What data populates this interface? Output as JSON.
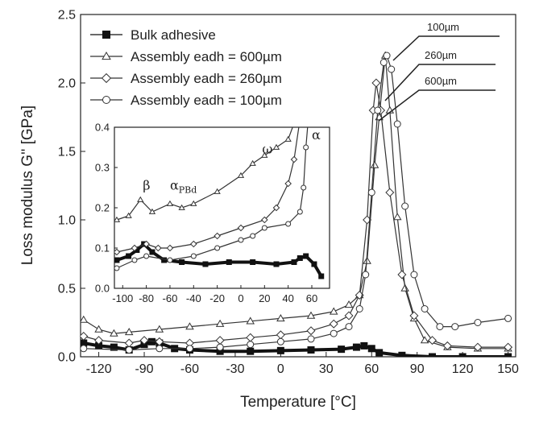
{
  "chart_data": [
    {
      "type": "line",
      "xlabel": "Temperature [°C]",
      "ylabel": "Loss modulus G'' [GPa]",
      "xlim": [
        -132,
        155
      ],
      "ylim": [
        0,
        2.5
      ],
      "xticks": [
        -120,
        -90,
        -60,
        -30,
        0,
        30,
        60,
        90,
        120,
        150
      ],
      "yticks": [
        {
          "value": 0,
          "label": "0.0"
        },
        {
          "value": 0.5,
          "label": "0.5"
        },
        {
          "value": 1,
          "label": "1.0"
        },
        {
          "value": 1.5,
          "label": "1.5"
        },
        {
          "value": 2,
          "label": "2.0"
        },
        {
          "value": 2.5,
          "label": "2.5"
        }
      ],
      "legend": "upper left",
      "series": [
        {
          "name": "Bulk adhesive",
          "color": "#111111",
          "marker": "square",
          "x": [
            -130,
            -120,
            -110,
            -100,
            -90,
            -85,
            -80,
            -70,
            -60,
            -40,
            -20,
            0,
            20,
            40,
            50,
            55,
            60,
            65,
            80,
            100,
            120,
            150
          ],
          "values": [
            0.1,
            0.08,
            0.07,
            0.05,
            0.09,
            0.11,
            0.1,
            0.06,
            0.05,
            0.04,
            0.04,
            0.045,
            0.05,
            0.055,
            0.07,
            0.08,
            0.06,
            0.03,
            0.01,
            0.0,
            0.0,
            0.0
          ]
        },
        {
          "name": "Assembly eadh = 600µm",
          "color": "#333333",
          "marker": "triangle",
          "x": [
            -130,
            -120,
            -110,
            -100,
            -80,
            -60,
            -40,
            -20,
            0,
            20,
            35,
            45,
            52,
            57,
            62,
            65,
            69,
            72,
            77,
            82,
            88,
            95,
            110,
            130,
            150
          ],
          "values": [
            0.27,
            0.2,
            0.17,
            0.18,
            0.2,
            0.22,
            0.24,
            0.26,
            0.28,
            0.3,
            0.33,
            0.38,
            0.45,
            0.7,
            1.4,
            1.75,
            2.2,
            1.8,
            1.02,
            0.5,
            0.28,
            0.12,
            0.07,
            0.06,
            0.06
          ]
        },
        {
          "name": "Assembly eadh = 260µm",
          "color": "#333333",
          "marker": "diamond",
          "x": [
            -130,
            -120,
            -100,
            -90,
            -80,
            -60,
            -40,
            -20,
            0,
            20,
            35,
            45,
            52,
            57,
            61,
            63,
            66,
            72,
            80,
            88,
            100,
            110,
            130,
            150
          ],
          "values": [
            0.15,
            0.12,
            0.1,
            0.12,
            0.11,
            0.1,
            0.12,
            0.14,
            0.16,
            0.19,
            0.24,
            0.3,
            0.45,
            1.0,
            1.8,
            2.0,
            1.8,
            1.2,
            0.6,
            0.3,
            0.12,
            0.08,
            0.07,
            0.07
          ]
        },
        {
          "name": "Assembly eadh = 100µm",
          "color": "#333333",
          "marker": "circle",
          "x": [
            -130,
            -100,
            -80,
            -60,
            -40,
            -20,
            0,
            20,
            35,
            45,
            52,
            56,
            60,
            64,
            68,
            70,
            73,
            77,
            82,
            88,
            95,
            105,
            115,
            130,
            150
          ],
          "values": [
            0.06,
            0.05,
            0.06,
            0.06,
            0.07,
            0.09,
            0.11,
            0.13,
            0.17,
            0.22,
            0.35,
            0.6,
            1.2,
            1.8,
            2.15,
            2.2,
            2.1,
            1.7,
            1.1,
            0.6,
            0.35,
            0.22,
            0.22,
            0.25,
            0.28
          ]
        }
      ],
      "annotations": [
        {
          "text": "100µm"
        },
        {
          "text": "260µm"
        },
        {
          "text": "600µm"
        }
      ]
    },
    {
      "type": "line",
      "xlim": [
        -107,
        75
      ],
      "ylim": [
        0,
        0.4
      ],
      "xticks": [
        -100,
        -80,
        -60,
        -40,
        -20,
        0,
        20,
        40,
        60
      ],
      "yticks": [
        {
          "value": 0,
          "label": "0.0"
        },
        {
          "value": 0.1,
          "label": "0.1"
        },
        {
          "value": 0.2,
          "label": "0.2"
        },
        {
          "value": 0.3,
          "label": "0.3"
        },
        {
          "value": 0.4,
          "label": "0.4"
        }
      ],
      "series": [
        {
          "color": "#111111",
          "marker": "square",
          "x": [
            -105,
            -95,
            -88,
            -82,
            -75,
            -65,
            -50,
            -30,
            -10,
            10,
            30,
            45,
            50,
            55,
            62,
            68
          ],
          "values": [
            0.07,
            0.08,
            0.095,
            0.11,
            0.09,
            0.07,
            0.065,
            0.06,
            0.065,
            0.065,
            0.06,
            0.065,
            0.075,
            0.08,
            0.06,
            0.03
          ]
        },
        {
          "color": "#333333",
          "marker": "triangle",
          "x": [
            -105,
            -95,
            -85,
            -75,
            -60,
            -50,
            -40,
            -20,
            0,
            10,
            20,
            30,
            40,
            45
          ],
          "values": [
            0.17,
            0.18,
            0.22,
            0.19,
            0.21,
            0.2,
            0.21,
            0.24,
            0.28,
            0.31,
            0.33,
            0.35,
            0.37,
            0.41
          ]
        },
        {
          "color": "#333333",
          "marker": "diamond",
          "x": [
            -105,
            -90,
            -80,
            -70,
            -60,
            -40,
            -20,
            0,
            20,
            30,
            40,
            45,
            50
          ],
          "values": [
            0.09,
            0.1,
            0.11,
            0.1,
            0.1,
            0.11,
            0.13,
            0.15,
            0.17,
            0.2,
            0.26,
            0.32,
            0.42
          ]
        },
        {
          "color": "#333333",
          "marker": "circle",
          "x": [
            -105,
            -90,
            -80,
            -60,
            -40,
            -20,
            0,
            10,
            20,
            40,
            50,
            53,
            55,
            57
          ],
          "values": [
            0.05,
            0.07,
            0.08,
            0.07,
            0.08,
            0.1,
            0.12,
            0.13,
            0.15,
            0.16,
            0.19,
            0.25,
            0.35,
            0.42
          ]
        }
      ],
      "annotations": [
        {
          "text": "β",
          "x": -83,
          "y": 0.245
        },
        {
          "text": "α",
          "subscript": "PBd",
          "x": -60,
          "y": 0.245
        },
        {
          "text": "ω",
          "x": 18,
          "y": 0.335
        },
        {
          "text": "α",
          "x": 60,
          "y": 0.37
        }
      ]
    }
  ]
}
